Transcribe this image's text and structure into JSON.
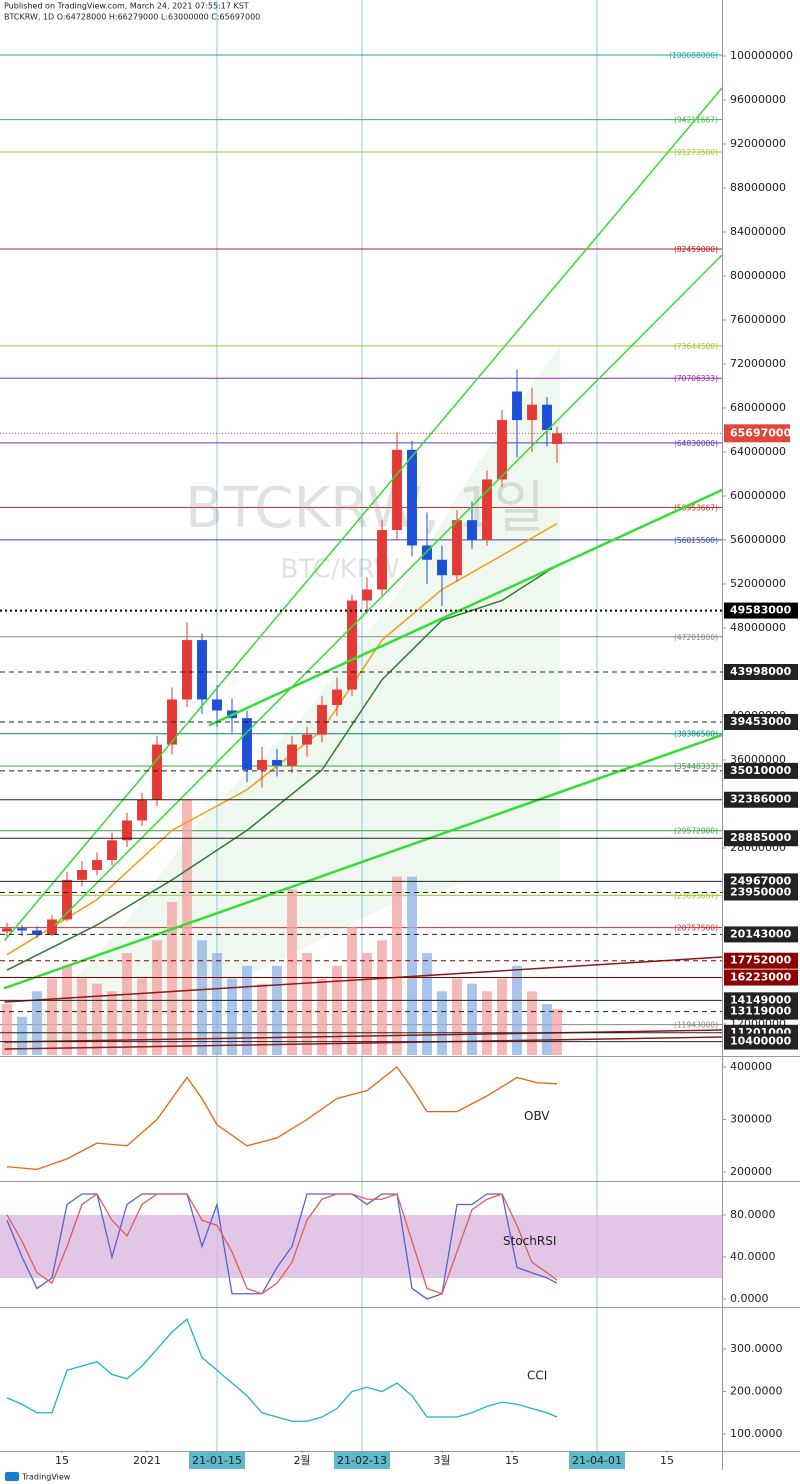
{
  "chart_data": [
    {
      "type": "candlestick",
      "title": "Published on TradingView.com, March 24, 2021 07:55:17 KST",
      "subtitle": "BTCKRW, 1D O:64728000 H:66279000 L:63000000 C:65697000",
      "watermark": "BTCKRW, 1일",
      "watermark_sub": "BTC/KRW",
      "xlim": [
        -29.4,
        115
      ],
      "ylim": [
        9180000,
        105090000
      ],
      "yticks": [
        100000000,
        96000000,
        92000000,
        88000000,
        84000000,
        80000000,
        76000000,
        72000000,
        68000000,
        64000000,
        60000000,
        56000000,
        52000000,
        48000000,
        44000000,
        40000000,
        36000000,
        32000000,
        28000000,
        24000000,
        20000000,
        16000000,
        12000000
      ],
      "x": [
        -28,
        -25,
        -22,
        -19,
        -16,
        -13,
        -10,
        -7,
        -4,
        -1,
        2,
        5,
        8,
        11,
        14,
        17,
        20,
        23,
        26,
        29,
        32,
        35,
        38,
        41,
        44,
        47,
        50,
        53,
        56,
        59,
        62,
        65,
        68,
        71,
        74,
        77,
        80,
        82
      ],
      "open": [
        20400000,
        20700000,
        20500000,
        20100000,
        21500000,
        25100000,
        26000000,
        26900000,
        28700000,
        30500000,
        32400000,
        37400000,
        41500000,
        46900000,
        41500000,
        40500000,
        39800000,
        35100000,
        36000000,
        35500000,
        37400000,
        38300000,
        41000000,
        42400000,
        50500000,
        51500000,
        56900000,
        64200000,
        55500000,
        54200000,
        52800000,
        57800000,
        56000000,
        61500000,
        69500000,
        66900000,
        68300000,
        64728000
      ],
      "high": [
        21200000,
        21000000,
        20900000,
        21900000,
        25800000,
        26800000,
        27600000,
        29400000,
        31200000,
        33000000,
        38200000,
        42600000,
        48500000,
        47500000,
        42800000,
        41600000,
        40500000,
        37200000,
        37000000,
        38200000,
        39000000,
        41800000,
        43500000,
        51000000,
        52600000,
        57800000,
        65800000,
        65000000,
        58500000,
        55500000,
        58700000,
        59500000,
        62300000,
        67800000,
        71500000,
        69800000,
        69000000,
        66279000
      ],
      "low": [
        19900000,
        20000000,
        19800000,
        20000000,
        21300000,
        24500000,
        25500000,
        26400000,
        28100000,
        30000000,
        31800000,
        36500000,
        40800000,
        40200000,
        39000000,
        38500000,
        34000000,
        33500000,
        34500000,
        34800000,
        36300000,
        37600000,
        40000000,
        41800000,
        49300000,
        50800000,
        56000000,
        54500000,
        52000000,
        50000000,
        52200000,
        55200000,
        55500000,
        60800000,
        63500000,
        64000000,
        64500000,
        63000000
      ],
      "close": [
        20700000,
        20500000,
        20100000,
        21500000,
        25100000,
        26000000,
        26900000,
        28700000,
        30500000,
        32400000,
        37400000,
        41500000,
        46900000,
        41500000,
        40500000,
        39800000,
        35100000,
        36000000,
        35500000,
        37400000,
        38300000,
        41000000,
        42400000,
        50500000,
        51500000,
        56900000,
        64200000,
        55500000,
        54200000,
        52800000,
        57800000,
        56000000,
        61500000,
        66900000,
        66900000,
        68300000,
        66000000,
        65697000
      ],
      "up_color": "#e53935",
      "down_color": "#1e4fd8",
      "volume": [
        20,
        15,
        25,
        30,
        35,
        30,
        28,
        25,
        40,
        30,
        45,
        60,
        100,
        45,
        40,
        30,
        35,
        28,
        35,
        65,
        40,
        30,
        35,
        50,
        40,
        45,
        70,
        70,
        40,
        25,
        30,
        28,
        25,
        30,
        35,
        25,
        20,
        18
      ],
      "volume_ylim": [
        0,
        414
      ],
      "volume_up_color": "#f2a5a5",
      "volume_down_color": "#93b5e6",
      "lines": [
        {
          "color": "#f39c12",
          "x": [
            -28,
            -10,
            5,
            20,
            35,
            47,
            59,
            71,
            82
          ],
          "values": [
            18300000,
            23300000,
            29600000,
            33300000,
            38700000,
            46900000,
            51500000,
            54600000,
            57500000
          ]
        },
        {
          "color": "#2e7d32",
          "x": [
            -28,
            -10,
            5,
            20,
            35,
            47,
            59,
            71,
            82
          ],
          "values": [
            16900000,
            21000000,
            25100000,
            29600000,
            35100000,
            43300000,
            48700000,
            50500000,
            53700000
          ]
        }
      ],
      "levels": [
        {
          "value": 100088000,
          "label": "(100088000)",
          "color": "#26a69a"
        },
        {
          "value": 94211667,
          "label": "(94211667)",
          "color": "#4caf50"
        },
        {
          "value": 91273500,
          "label": "(91273500)",
          "color": "#9acd32"
        },
        {
          "value": 82459000,
          "label": "(82459000)",
          "color": "#b71c1c"
        },
        {
          "value": 73644500,
          "label": "(73644500)",
          "color": "#9acd32"
        },
        {
          "value": 70706333,
          "label": "(70706333)",
          "color": "#9c27b0"
        },
        {
          "value": 64830000,
          "label": "(64830000)",
          "color": "#673ab7"
        },
        {
          "value": 58953667,
          "label": "(58953667)",
          "color": "#d32f2f"
        },
        {
          "value": 56015500,
          "label": "(56015500)",
          "color": "#3949ab"
        },
        {
          "value": 47201000,
          "label": "(47201000)",
          "color": "#888888"
        },
        {
          "value": 38386500,
          "label": "(38386500)",
          "color": "#00897b"
        },
        {
          "value": 35448333,
          "label": "(35448333)",
          "color": "#43a047"
        },
        {
          "value": 29572000,
          "label": "(29572000)",
          "color": "#43a047"
        },
        {
          "value": 23695667,
          "label": "(23695667)",
          "color": "#9acd32"
        },
        {
          "value": 20757500,
          "label": "(20757500)",
          "color": "#d32f2f"
        },
        {
          "value": 11943000,
          "label": "(11943000)",
          "color": "#888888"
        }
      ],
      "price_lines": [
        49583000,
        43998000,
        39453000,
        35010000,
        32386000,
        28885000,
        24967000,
        23950000,
        20143000,
        17752000,
        16223000,
        14149000,
        13119000,
        11201000,
        10400000
      ],
      "price_line_styles": [
        "dotted",
        "dashed",
        "dashed",
        "dashed",
        "solid",
        "solid",
        "solid",
        "dashed",
        "dashed",
        "dashed",
        "solid",
        "solid",
        "dashed",
        "solid",
        "solid"
      ],
      "price_line_colors": [
        "#000000",
        "#222222",
        "#222222",
        "#222222",
        "#222222",
        "#222222",
        "#222222",
        "#222222",
        "#222222",
        "#8b0000",
        "#8b0000",
        "#222222",
        "#222222",
        "#222222",
        "#222222"
      ],
      "last_price": 65697000,
      "last_color": "#e0463c",
      "vlines": [
        14,
        43,
        90
      ]
    },
    {
      "type": "line",
      "label": "OBV",
      "xlim": [
        -29.4,
        115
      ],
      "ylim": [
        184762,
        417143
      ],
      "yticks": [
        400000,
        300000,
        200000
      ],
      "series": [
        {
          "color": "#e8650c",
          "x": [
            -28,
            -22,
            -16,
            -10,
            -4,
            2,
            8,
            11,
            14,
            20,
            26,
            32,
            38,
            44,
            50,
            53,
            56,
            62,
            68,
            74,
            78,
            82
          ],
          "values": [
            210000,
            205000,
            225000,
            255000,
            250000,
            300000,
            380000,
            340000,
            290000,
            250000,
            265000,
            300000,
            340000,
            355000,
            400000,
            360000,
            315000,
            315000,
            345000,
            380000,
            370000,
            368000
          ]
        }
      ]
    },
    {
      "type": "line",
      "label": "StochRSI",
      "xlim": [
        -29.4,
        115
      ],
      "ylim": [
        -6.7,
        111.4
      ],
      "yticks": [
        {
          "value": 80,
          "label": "80.0000"
        },
        {
          "value": 40,
          "label": "40.0000"
        },
        {
          "value": 0,
          "label": "0.0000"
        }
      ],
      "band": [
        20,
        80
      ],
      "band_color": "#d9b8e0",
      "series": [
        {
          "color": "#5563d8",
          "x": [
            -28,
            -25,
            -22,
            -19,
            -16,
            -13,
            -10,
            -7,
            -4,
            -1,
            2,
            5,
            8,
            11,
            14,
            17,
            20,
            23,
            26,
            29,
            32,
            35,
            38,
            41,
            44,
            47,
            50,
            53,
            56,
            59,
            62,
            65,
            68,
            71,
            74,
            77,
            80,
            82
          ],
          "values": [
            75,
            40,
            10,
            20,
            90,
            100,
            100,
            40,
            90,
            100,
            100,
            100,
            100,
            50,
            90,
            5,
            5,
            5,
            30,
            50,
            100,
            100,
            100,
            100,
            90,
            100,
            100,
            10,
            0,
            5,
            90,
            90,
            100,
            100,
            30,
            25,
            20,
            15
          ]
        },
        {
          "color": "#e35b5b",
          "x": [
            -28,
            -25,
            -22,
            -19,
            -16,
            -13,
            -10,
            -7,
            -4,
            -1,
            2,
            5,
            8,
            11,
            14,
            17,
            20,
            23,
            26,
            29,
            32,
            35,
            38,
            41,
            44,
            47,
            50,
            53,
            56,
            59,
            62,
            65,
            68,
            71,
            74,
            77,
            80,
            82
          ],
          "values": [
            80,
            55,
            25,
            15,
            50,
            90,
            100,
            75,
            60,
            90,
            100,
            100,
            100,
            75,
            70,
            45,
            10,
            5,
            15,
            35,
            75,
            95,
            100,
            100,
            95,
            95,
            100,
            55,
            10,
            5,
            45,
            85,
            95,
            100,
            70,
            35,
            25,
            18
          ]
        }
      ]
    },
    {
      "type": "line",
      "label": "CCI",
      "xlim": [
        -29.4,
        115
      ],
      "ylim": [
        62.4,
        396.5
      ],
      "yticks": [
        {
          "value": 300,
          "label": "300.0000"
        },
        {
          "value": 200,
          "label": "200.0000"
        },
        {
          "value": 100,
          "label": "100.0000"
        }
      ],
      "series": [
        {
          "color": "#1cb5c9",
          "x": [
            -28,
            -25,
            -22,
            -19,
            -16,
            -13,
            -10,
            -7,
            -4,
            -1,
            2,
            5,
            8,
            11,
            14,
            17,
            20,
            23,
            26,
            29,
            32,
            35,
            38,
            41,
            44,
            47,
            50,
            53,
            56,
            59,
            62,
            65,
            68,
            71,
            74,
            77,
            80,
            82
          ],
          "values": [
            185,
            170,
            150,
            150,
            250,
            260,
            270,
            240,
            230,
            260,
            300,
            340,
            370,
            280,
            250,
            220,
            190,
            150,
            140,
            130,
            130,
            140,
            160,
            200,
            210,
            200,
            220,
            190,
            140,
            140,
            140,
            150,
            165,
            175,
            170,
            160,
            150,
            140
          ]
        }
      ],
      "xticks": [
        {
          "value": -17,
          "label": "15"
        },
        {
          "value": 0,
          "label": "2021"
        },
        {
          "value": 14,
          "label": "21-01-15"
        },
        {
          "value": 31,
          "label": "2월"
        },
        {
          "value": 43,
          "label": "21-02-13"
        },
        {
          "value": 59,
          "label": "3월"
        },
        {
          "value": 73,
          "label": "15"
        },
        {
          "value": 90,
          "label": "21-04-01"
        },
        {
          "value": 104,
          "label": "15"
        }
      ],
      "footer": "TradingView"
    }
  ]
}
